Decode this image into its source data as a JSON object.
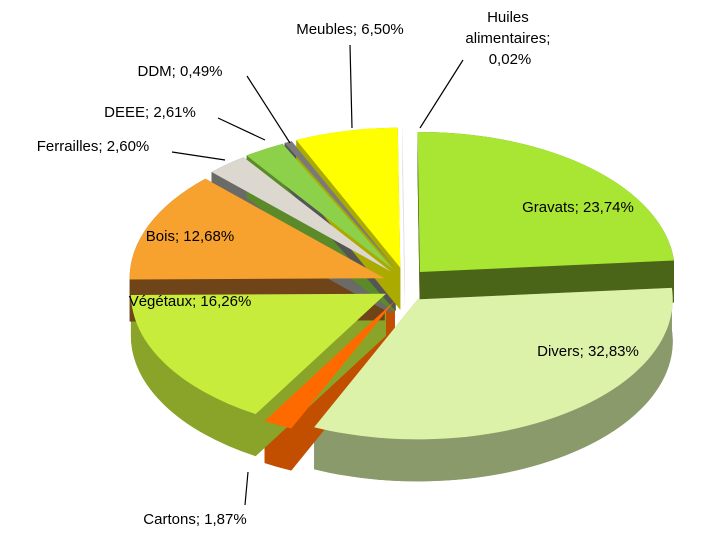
{
  "chart_data": {
    "type": "pie",
    "categories": [
      "Huiles alimentaires",
      "Gravats",
      "Divers",
      "Cartons",
      "Végétaux",
      "Bois",
      "Ferrailles",
      "DEEE",
      "DDM",
      "Meubles"
    ],
    "values": [
      0.02,
      23.74,
      32.83,
      1.87,
      16.26,
      12.68,
      2.6,
      2.61,
      0.49,
      6.5
    ],
    "value_labels": [
      "Huiles alimentaires; 0,02%",
      "Gravats; 23,74%",
      "Divers; 32,83%",
      "Cartons; 1,87%",
      "Végétaux; 16,26%",
      "Bois; 12,68%",
      "Ferrailles; 2,60%",
      "DEEE; 2,61%",
      "DDM; 0,49%",
      "Meubles; 6,50%"
    ],
    "colors": [
      "#ffffff",
      "#a8e633",
      "#dcf2a8",
      "#ff6a00",
      "#c8ec3c",
      "#f7a12e",
      "#dcd8cf",
      "#8dd14a",
      "#7a7a7a",
      "#ffff00"
    ],
    "side_colors": [
      "#e0e0e0",
      "#4a6418",
      "#8a9a6a",
      "#c24e00",
      "#8aa42a",
      "#6e4418",
      "#6a6a66",
      "#5a8a2a",
      "#555555",
      "#aaaa00"
    ]
  }
}
